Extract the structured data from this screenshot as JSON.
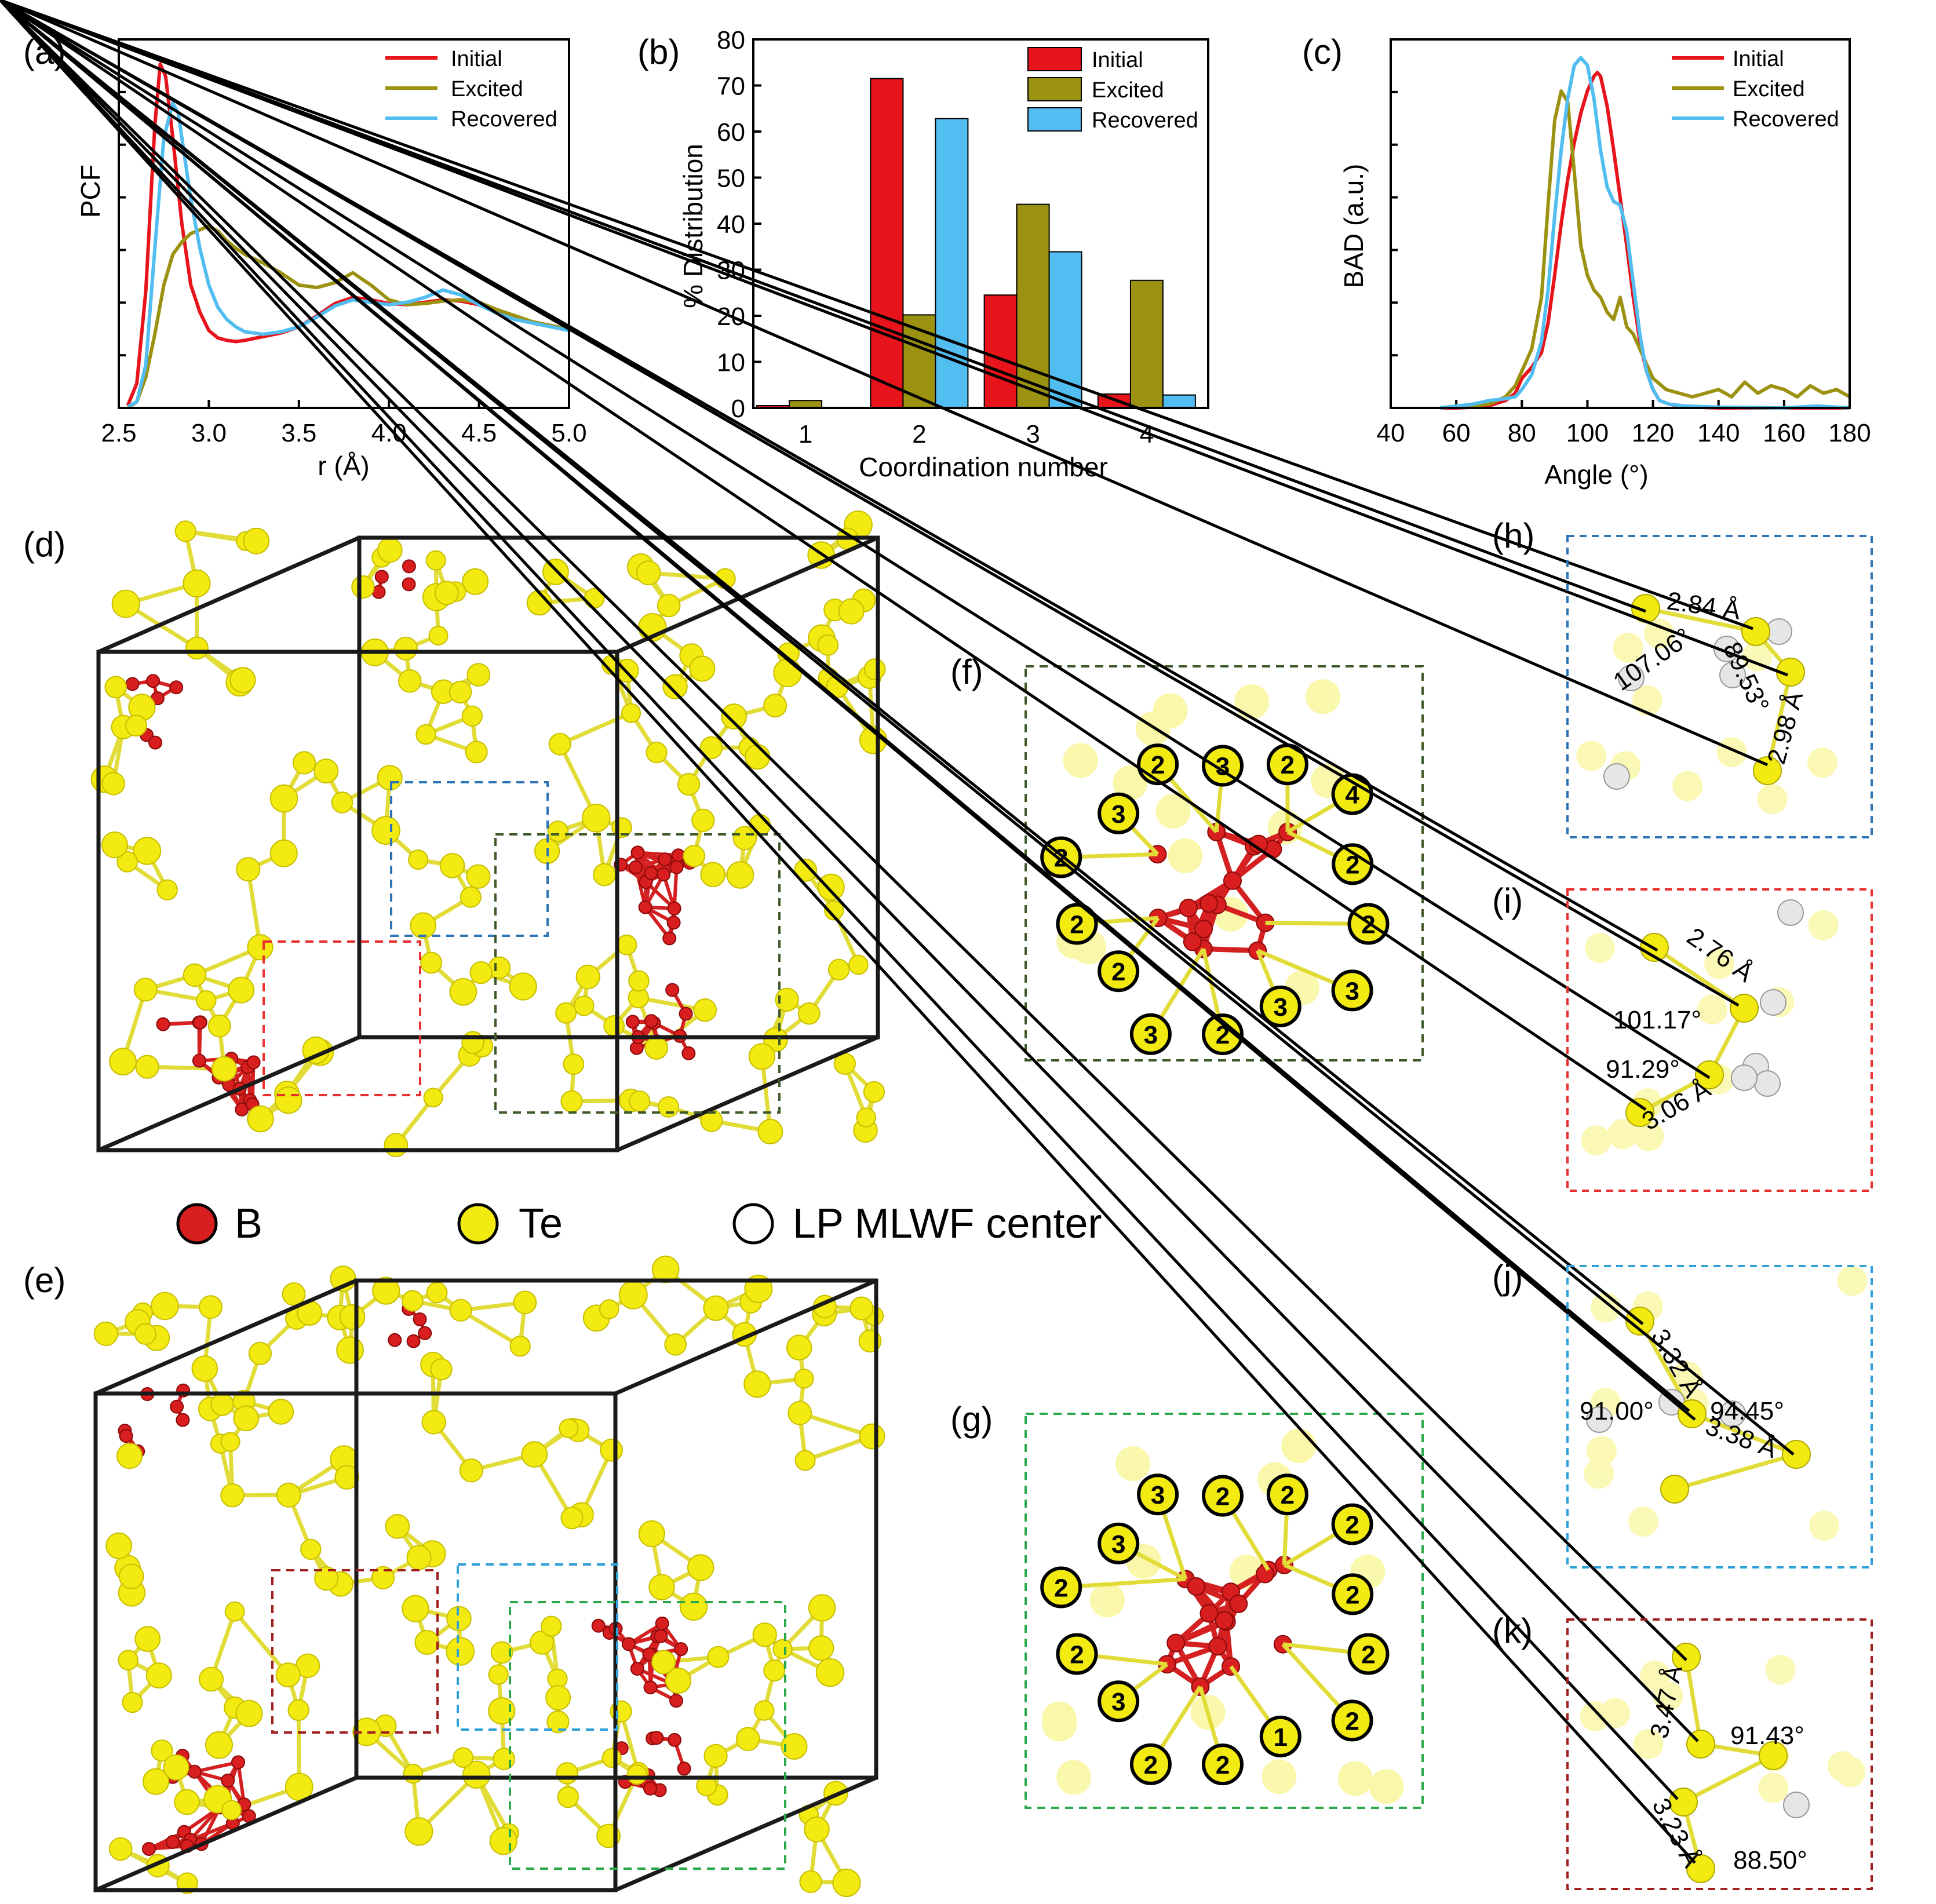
{
  "colors": {
    "initial": "#e8141b",
    "excited": "#9c9212",
    "recovered": "#52bdf0",
    "boron": "#d81e1e",
    "tellurium": "#f2ea10",
    "bond_te": "#e2dc38",
    "bond_b": "#d42020",
    "lp": "#ffffff",
    "box_blue": "#2e74b5",
    "box_red": "#e83030",
    "box_darkgreen": "#3f5a2a",
    "box_green": "#2aa84a",
    "box_cyan": "#30a0d8",
    "box_darkred": "#a02020"
  },
  "panel_labels": {
    "a": "(a)",
    "b": "(b)",
    "c": "(c)",
    "d": "(d)",
    "e": "(e)",
    "f": "(f)",
    "g": "(g)",
    "h": "(h)",
    "i": "(i)",
    "j": "(j)",
    "k": "(k)"
  },
  "legend_atoms": {
    "b": "B",
    "te": "Te",
    "lp": "LP MLWF center"
  },
  "chart_data": [
    {
      "panel": "a",
      "type": "line",
      "xlabel": "r (Å)",
      "ylabel": "PCF",
      "xlim": [
        2.5,
        5.0
      ],
      "xticks": [
        2.5,
        3.0,
        3.5,
        4.0,
        4.5,
        5.0
      ],
      "xtick_labels": [
        "2.5",
        "3.0",
        "3.5",
        "4.0",
        "4.5",
        "5.0"
      ],
      "ylim": [
        0,
        3.0
      ],
      "yticks_unlabeled": true,
      "legend": "top-right",
      "series": [
        {
          "name": "Initial",
          "x": [
            2.55,
            2.6,
            2.65,
            2.7,
            2.73,
            2.76,
            2.8,
            2.85,
            2.9,
            2.95,
            3.0,
            3.05,
            3.1,
            3.15,
            3.2,
            3.3,
            3.4,
            3.5,
            3.6,
            3.7,
            3.8,
            3.9,
            4.0,
            4.1,
            4.2,
            4.3,
            4.4,
            4.5,
            4.6,
            4.7,
            4.8,
            4.9,
            5.0
          ],
          "y": [
            0.02,
            0.2,
            0.95,
            2.3,
            2.8,
            2.7,
            2.2,
            1.5,
            1.0,
            0.78,
            0.63,
            0.57,
            0.55,
            0.54,
            0.55,
            0.58,
            0.61,
            0.66,
            0.75,
            0.85,
            0.9,
            0.88,
            0.85,
            0.84,
            0.86,
            0.88,
            0.87,
            0.84,
            0.78,
            0.74,
            0.7,
            0.67,
            0.64
          ]
        },
        {
          "name": "Excited",
          "x": [
            2.55,
            2.6,
            2.65,
            2.7,
            2.75,
            2.8,
            2.85,
            2.9,
            2.95,
            3.0,
            3.05,
            3.1,
            3.15,
            3.2,
            3.3,
            3.4,
            3.5,
            3.6,
            3.7,
            3.8,
            3.9,
            4.0,
            4.1,
            4.2,
            4.3,
            4.4,
            4.5,
            4.6,
            4.7,
            4.8,
            4.9,
            5.0
          ],
          "y": [
            0.0,
            0.05,
            0.25,
            0.6,
            1.0,
            1.25,
            1.35,
            1.42,
            1.45,
            1.48,
            1.44,
            1.36,
            1.3,
            1.25,
            1.18,
            1.1,
            1.0,
            0.98,
            1.02,
            1.1,
            1.0,
            0.88,
            0.84,
            0.85,
            0.87,
            0.88,
            0.86,
            0.8,
            0.75,
            0.7,
            0.67,
            0.64
          ]
        },
        {
          "name": "Recovered",
          "x": [
            2.55,
            2.6,
            2.65,
            2.7,
            2.75,
            2.8,
            2.83,
            2.86,
            2.9,
            2.95,
            3.0,
            3.05,
            3.1,
            3.15,
            3.2,
            3.3,
            3.4,
            3.5,
            3.6,
            3.7,
            3.8,
            3.9,
            4.0,
            4.1,
            4.2,
            4.3,
            4.4,
            4.5,
            4.6,
            4.7,
            4.8,
            4.9,
            5.0
          ],
          "y": [
            0.01,
            0.05,
            0.35,
            1.3,
            2.2,
            2.48,
            2.4,
            2.1,
            1.7,
            1.3,
            1.0,
            0.82,
            0.72,
            0.66,
            0.62,
            0.6,
            0.62,
            0.66,
            0.74,
            0.83,
            0.88,
            0.86,
            0.84,
            0.86,
            0.9,
            0.96,
            0.92,
            0.84,
            0.77,
            0.72,
            0.69,
            0.66,
            0.63
          ]
        }
      ]
    },
    {
      "panel": "b",
      "type": "bar",
      "xlabel": "Coordination number",
      "ylabel": "% Distribution",
      "categories": [
        "1",
        "2",
        "3",
        "4"
      ],
      "ylim": [
        0,
        80
      ],
      "yticks": [
        0,
        10,
        20,
        30,
        40,
        50,
        60,
        70,
        80
      ],
      "legend": "top-right",
      "series": [
        {
          "name": "Initial",
          "values": [
            0.5,
            71.5,
            24.5,
            3.0
          ]
        },
        {
          "name": "Excited",
          "values": [
            1.6,
            20.2,
            44.2,
            27.7
          ]
        },
        {
          "name": "Recovered",
          "values": [
            0.0,
            62.8,
            33.9,
            2.8
          ]
        }
      ]
    },
    {
      "panel": "c",
      "type": "line",
      "xlabel": "Angle (°)",
      "ylabel": "BAD (a.u.)",
      "xlim": [
        40,
        180
      ],
      "xticks": [
        40,
        60,
        80,
        100,
        120,
        140,
        160,
        180
      ],
      "xtick_labels": [
        "40",
        "60",
        "80",
        "100",
        "120",
        "140",
        "160",
        "180"
      ],
      "ylim": [
        0,
        1.0
      ],
      "yticks_unlabeled": true,
      "legend": "top-right",
      "series": [
        {
          "name": "Initial",
          "x": [
            55,
            60,
            65,
            70,
            75,
            78,
            80,
            83,
            86,
            88,
            90,
            92,
            94,
            96,
            98,
            100,
            102,
            103,
            104,
            106,
            108,
            110,
            112,
            114,
            116,
            118,
            120,
            122,
            125,
            130,
            140,
            160,
            180
          ],
          "y": [
            0,
            0,
            0.002,
            0.006,
            0.02,
            0.04,
            0.08,
            0.11,
            0.15,
            0.23,
            0.36,
            0.5,
            0.62,
            0.72,
            0.8,
            0.86,
            0.9,
            0.91,
            0.9,
            0.82,
            0.7,
            0.57,
            0.44,
            0.3,
            0.18,
            0.1,
            0.05,
            0.02,
            0.01,
            0.003,
            0.0,
            0.0,
            0.0
          ]
        },
        {
          "name": "Excited",
          "x": [
            55,
            60,
            65,
            70,
            75,
            78,
            80,
            83,
            86,
            88,
            90,
            92,
            94,
            96,
            98,
            100,
            102,
            104,
            106,
            108,
            110,
            112,
            114,
            116,
            118,
            120,
            124,
            128,
            132,
            136,
            140,
            144,
            148,
            152,
            156,
            160,
            164,
            168,
            172,
            176,
            180
          ],
          "y": [
            0,
            0.005,
            0.006,
            0.01,
            0.03,
            0.06,
            0.1,
            0.16,
            0.3,
            0.55,
            0.78,
            0.86,
            0.83,
            0.64,
            0.44,
            0.36,
            0.32,
            0.3,
            0.26,
            0.24,
            0.3,
            0.22,
            0.2,
            0.16,
            0.12,
            0.08,
            0.05,
            0.04,
            0.03,
            0.04,
            0.05,
            0.03,
            0.07,
            0.04,
            0.06,
            0.05,
            0.03,
            0.06,
            0.04,
            0.05,
            0.03
          ]
        },
        {
          "name": "Recovered",
          "x": [
            55,
            60,
            65,
            70,
            75,
            78,
            80,
            83,
            86,
            88,
            90,
            92,
            94,
            96,
            98,
            100,
            102,
            104,
            106,
            108,
            110,
            112,
            114,
            116,
            118,
            120,
            122,
            125,
            130,
            140,
            160,
            170,
            180
          ],
          "y": [
            0,
            0.005,
            0.01,
            0.02,
            0.025,
            0.03,
            0.05,
            0.09,
            0.18,
            0.32,
            0.52,
            0.7,
            0.84,
            0.93,
            0.95,
            0.93,
            0.84,
            0.7,
            0.6,
            0.56,
            0.55,
            0.48,
            0.34,
            0.2,
            0.1,
            0.05,
            0.02,
            0.01,
            0.005,
            0.002,
            0.0,
            0.005,
            0.0
          ]
        }
      ]
    }
  ],
  "coordination_labels": {
    "f": [
      "3",
      "2",
      "4",
      "2",
      "2",
      "3",
      "3",
      "2",
      "3",
      "2",
      "2",
      "2",
      "3",
      "2"
    ],
    "g": [
      "2",
      "2",
      "2",
      "2",
      "2",
      "2",
      "1",
      "2",
      "2",
      "3",
      "2",
      "2",
      "3",
      "3"
    ]
  },
  "annotations": {
    "h": [
      "2.84 Å",
      "107.06°",
      "89.53°",
      "2.98 Å"
    ],
    "i": [
      "2.76 Å",
      "101.17°",
      "91.29°",
      "3.06 Å"
    ],
    "j": [
      "3.32 Å",
      "91.00°",
      "94.45°",
      "3.38 Å"
    ],
    "k": [
      "3.47 Å",
      "91.43°",
      "3.23 Å",
      "88.50°"
    ]
  }
}
